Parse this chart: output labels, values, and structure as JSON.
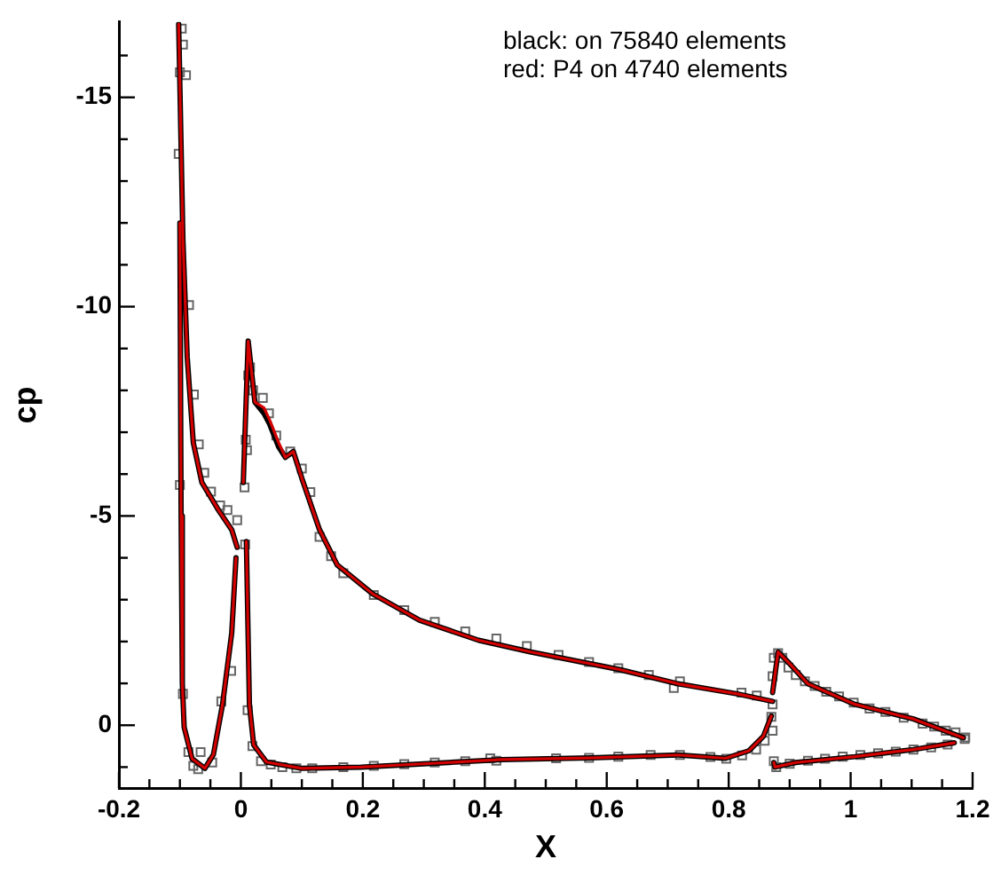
{
  "chart_data": {
    "type": "line",
    "xlabel": "X",
    "ylabel": "cp",
    "annotations": [
      "black: on 75840 elements",
      "red: P4 on 4740 elements"
    ],
    "xlim": [
      -0.2,
      1.2
    ],
    "ylim": [
      1.5,
      -16.8
    ],
    "xticks": [
      -0.2,
      {
        "value": -0.15,
        "label": null
      },
      {
        "value": -0.1,
        "label": null
      },
      {
        "value": -0.05,
        "label": null
      },
      0,
      {
        "value": 0.05,
        "label": null
      },
      {
        "value": 0.1,
        "label": null
      },
      {
        "value": 0.15,
        "label": null
      },
      0.2,
      {
        "value": 0.25,
        "label": null
      },
      {
        "value": 0.3,
        "label": null
      },
      {
        "value": 0.35,
        "label": null
      },
      0.4,
      {
        "value": 0.45,
        "label": null
      },
      {
        "value": 0.5,
        "label": null
      },
      {
        "value": 0.55,
        "label": null
      },
      0.6,
      {
        "value": 0.65,
        "label": null
      },
      {
        "value": 0.7,
        "label": null
      },
      {
        "value": 0.75,
        "label": null
      },
      0.8,
      {
        "value": 0.85,
        "label": null
      },
      {
        "value": 0.9,
        "label": null
      },
      {
        "value": 0.95,
        "label": null
      },
      1,
      {
        "value": 1.05,
        "label": null
      },
      {
        "value": 1.1,
        "label": null
      },
      {
        "value": 1.15,
        "label": null
      },
      1.2
    ],
    "yticks": [
      {
        "value": -16,
        "label": null
      },
      -15,
      {
        "value": -14,
        "label": null
      },
      {
        "value": -13,
        "label": null
      },
      {
        "value": -12,
        "label": null
      },
      {
        "value": -11,
        "label": null
      },
      -10,
      {
        "value": -9,
        "label": null
      },
      {
        "value": -8,
        "label": null
      },
      {
        "value": -7,
        "label": null
      },
      {
        "value": -6,
        "label": null
      },
      -5,
      {
        "value": -4,
        "label": null
      },
      {
        "value": -3,
        "label": null
      },
      {
        "value": -2,
        "label": null
      },
      {
        "value": -1,
        "label": null
      },
      0,
      {
        "value": 1,
        "label": null
      }
    ],
    "grid": false,
    "marker": "none",
    "line_style": "solid",
    "series": [
      {
        "color": "#d40000",
        "x": [
          -0.102,
          -0.095,
          -0.088,
          -0.078,
          -0.064,
          -0.035,
          -0.015,
          -0.006
        ],
        "values": [
          -16.75,
          -11.6,
          -8.8,
          -6.75,
          -5.8,
          -5.1,
          -4.67,
          -4.25
        ]
      },
      {
        "color": "#d40000",
        "x": [
          -0.1,
          -0.098,
          -0.096,
          -0.093,
          -0.08,
          -0.059,
          -0.045,
          -0.03,
          -0.015,
          -0.008
        ],
        "values": [
          -12,
          -5,
          -1,
          0.05,
          0.8,
          1.03,
          0.7,
          -0.5,
          -2.2,
          -4.0
        ]
      },
      {
        "color": "#d40000",
        "x": [
          0.004,
          0.012,
          0.023,
          0.038,
          0.047,
          0.062,
          0.073,
          0.086,
          0.1,
          0.129,
          0.158,
          0.216,
          0.293,
          0.39,
          0.476,
          0.524,
          0.621,
          0.717,
          0.814,
          0.872
        ],
        "values": [
          -5.8,
          -9.18,
          -7.72,
          -7.58,
          -7.3,
          -6.75,
          -6.4,
          -6.54,
          -5.9,
          -4.67,
          -3.83,
          -3.14,
          -2.51,
          -2.03,
          -1.75,
          -1.61,
          -1.33,
          -0.99,
          -0.75,
          -0.57
        ]
      },
      {
        "color": "#d40000",
        "x": [
          0.009,
          0.014,
          0.021,
          0.042,
          0.1,
          0.197,
          0.341,
          0.428,
          0.573,
          0.717,
          0.795,
          0.833,
          0.857,
          0.87
        ],
        "values": [
          -4.39,
          -0.5,
          0.47,
          0.88,
          1.03,
          1.0,
          0.89,
          0.82,
          0.78,
          0.71,
          0.79,
          0.61,
          0.26,
          -0.22
        ]
      },
      {
        "color": "#d40000",
        "x": [
          0.872,
          0.881,
          0.9,
          0.93,
          1.007,
          1.103,
          1.185
        ],
        "values": [
          -0.78,
          -1.75,
          -1.47,
          -0.99,
          -0.5,
          -0.15,
          0.3
        ]
      },
      {
        "color": "#d40000",
        "x": [
          0.874,
          0.876,
          0.91,
          1.007,
          1.103,
          1.17
        ],
        "values": [
          0.89,
          1.0,
          0.89,
          0.75,
          0.58,
          0.42
        ]
      },
      {
        "color": "#000000",
        "x": [
          -0.102,
          -0.095,
          -0.088,
          -0.078,
          -0.064,
          -0.035,
          -0.015,
          -0.006
        ],
        "values": [
          -16.75,
          -11.6,
          -8.8,
          -6.75,
          -5.8,
          -5.1,
          -4.67,
          -4.25
        ]
      },
      {
        "color": "#000000",
        "x": [
          -0.1,
          -0.098,
          -0.096,
          -0.093,
          -0.08,
          -0.059,
          -0.045,
          -0.03,
          -0.015,
          -0.008
        ],
        "values": [
          -12,
          -5,
          -1,
          0.05,
          0.8,
          1.03,
          0.7,
          -0.5,
          -2.2,
          -4.0
        ]
      },
      {
        "color": "#000000",
        "x": [
          0.004,
          0.012,
          0.023,
          0.038,
          0.047,
          0.062,
          0.073,
          0.086,
          0.1,
          0.129,
          0.158,
          0.216,
          0.293,
          0.39,
          0.476,
          0.524,
          0.621,
          0.717,
          0.814,
          0.872
        ],
        "values": [
          -5.8,
          -9.18,
          -7.72,
          -7.45,
          -7.2,
          -6.65,
          -6.4,
          -6.54,
          -5.9,
          -4.67,
          -3.83,
          -3.14,
          -2.51,
          -2.03,
          -1.75,
          -1.61,
          -1.33,
          -0.99,
          -0.75,
          -0.57
        ]
      },
      {
        "color": "#000000",
        "x": [
          0.009,
          0.014,
          0.021,
          0.042,
          0.1,
          0.197,
          0.341,
          0.428,
          0.573,
          0.717,
          0.795,
          0.833,
          0.857,
          0.87
        ],
        "values": [
          -4.39,
          -0.5,
          0.47,
          0.88,
          1.03,
          1.0,
          0.89,
          0.82,
          0.78,
          0.71,
          0.79,
          0.61,
          0.26,
          -0.22
        ]
      },
      {
        "color": "#000000",
        "x": [
          0.872,
          0.881,
          0.9,
          0.93,
          1.007,
          1.103,
          1.185
        ],
        "values": [
          -0.78,
          -1.75,
          -1.47,
          -0.99,
          -0.5,
          -0.15,
          0.3
        ]
      },
      {
        "color": "#000000",
        "x": [
          0.874,
          0.876,
          0.91,
          1.007,
          1.103,
          1.17
        ],
        "values": [
          0.89,
          1.0,
          0.89,
          0.75,
          0.58,
          0.42
        ]
      },
      {
        "type": "scatter",
        "color": "#666666",
        "marker": "square",
        "x": [
          -0.097,
          -0.095,
          -0.1,
          -0.09,
          -0.102,
          -0.085,
          -0.077,
          -0.069,
          -0.06,
          -0.049,
          -0.034,
          -0.022,
          -0.006,
          -0.1,
          -0.095,
          -0.086,
          -0.078,
          -0.07,
          -0.066,
          -0.047,
          -0.032,
          -0.016,
          0.006,
          0.008,
          0.01,
          0.007,
          0.012,
          0.015,
          0.02,
          0.036,
          0.046,
          0.058,
          0.081,
          0.1,
          0.114,
          0.129,
          0.148,
          0.168,
          0.218,
          0.268,
          0.318,
          0.368,
          0.419,
          0.469,
          0.521,
          0.571,
          0.619,
          0.669,
          0.71,
          0.72,
          0.821,
          0.846,
          0.872,
          0.011,
          0.019,
          0.033,
          0.049,
          0.068,
          0.091,
          0.117,
          0.168,
          0.218,
          0.268,
          0.318,
          0.368,
          0.409,
          0.419,
          0.517,
          0.571,
          0.619,
          0.672,
          0.72,
          0.77,
          0.796,
          0.822,
          0.845,
          0.859,
          0.872,
          0.87,
          0.874,
          0.878,
          0.9,
          0.93,
          0.958,
          0.987,
          1.016,
          1.045,
          1.074,
          1.103,
          1.132,
          1.159,
          1.187,
          0.872,
          0.874,
          0.881,
          0.888,
          0.898,
          0.91,
          0.925,
          0.941,
          0.96,
          0.981,
          1.005,
          1.031,
          1.057,
          1.087,
          1.118,
          1.137,
          1.156,
          1.172,
          1.188
        ],
        "values": [
          -16.64,
          -16.26,
          -15.6,
          -15.53,
          -13.65,
          -10.04,
          -7.9,
          -6.71,
          -6.03,
          -5.58,
          -5.25,
          -5.14,
          -4.9,
          -5.74,
          -0.75,
          0.64,
          0.97,
          1.05,
          0.64,
          0.89,
          -0.57,
          -1.3,
          -5.68,
          -6.82,
          -6.57,
          -4.32,
          -8.36,
          -8.55,
          -8.0,
          -7.82,
          -7.45,
          -6.92,
          -6.54,
          -6.13,
          -5.57,
          -4.5,
          -4.04,
          -3.63,
          -3.11,
          -2.75,
          -2.47,
          -2.24,
          -2.07,
          -1.89,
          -1.68,
          -1.51,
          -1.36,
          -1.2,
          -0.89,
          -1.05,
          -0.78,
          -0.71,
          -0.5,
          -0.36,
          0.5,
          0.86,
          0.94,
          1.0,
          1.03,
          1.03,
          1.0,
          0.97,
          0.93,
          0.89,
          0.86,
          0.79,
          0.85,
          0.79,
          0.78,
          0.75,
          0.71,
          0.71,
          0.76,
          0.8,
          0.72,
          0.58,
          0.37,
          0.13,
          -0.2,
          0.86,
          1.0,
          0.92,
          0.85,
          0.8,
          0.75,
          0.71,
          0.67,
          0.63,
          0.58,
          0.53,
          0.46,
          0.33,
          -1.17,
          -1.61,
          -1.72,
          -1.61,
          -1.38,
          -1.2,
          -1.05,
          -0.94,
          -0.8,
          -0.69,
          -0.54,
          -0.4,
          -0.32,
          -0.18,
          -0.04,
          0.03,
          0.13,
          0.17,
          0.29
        ]
      }
    ]
  }
}
